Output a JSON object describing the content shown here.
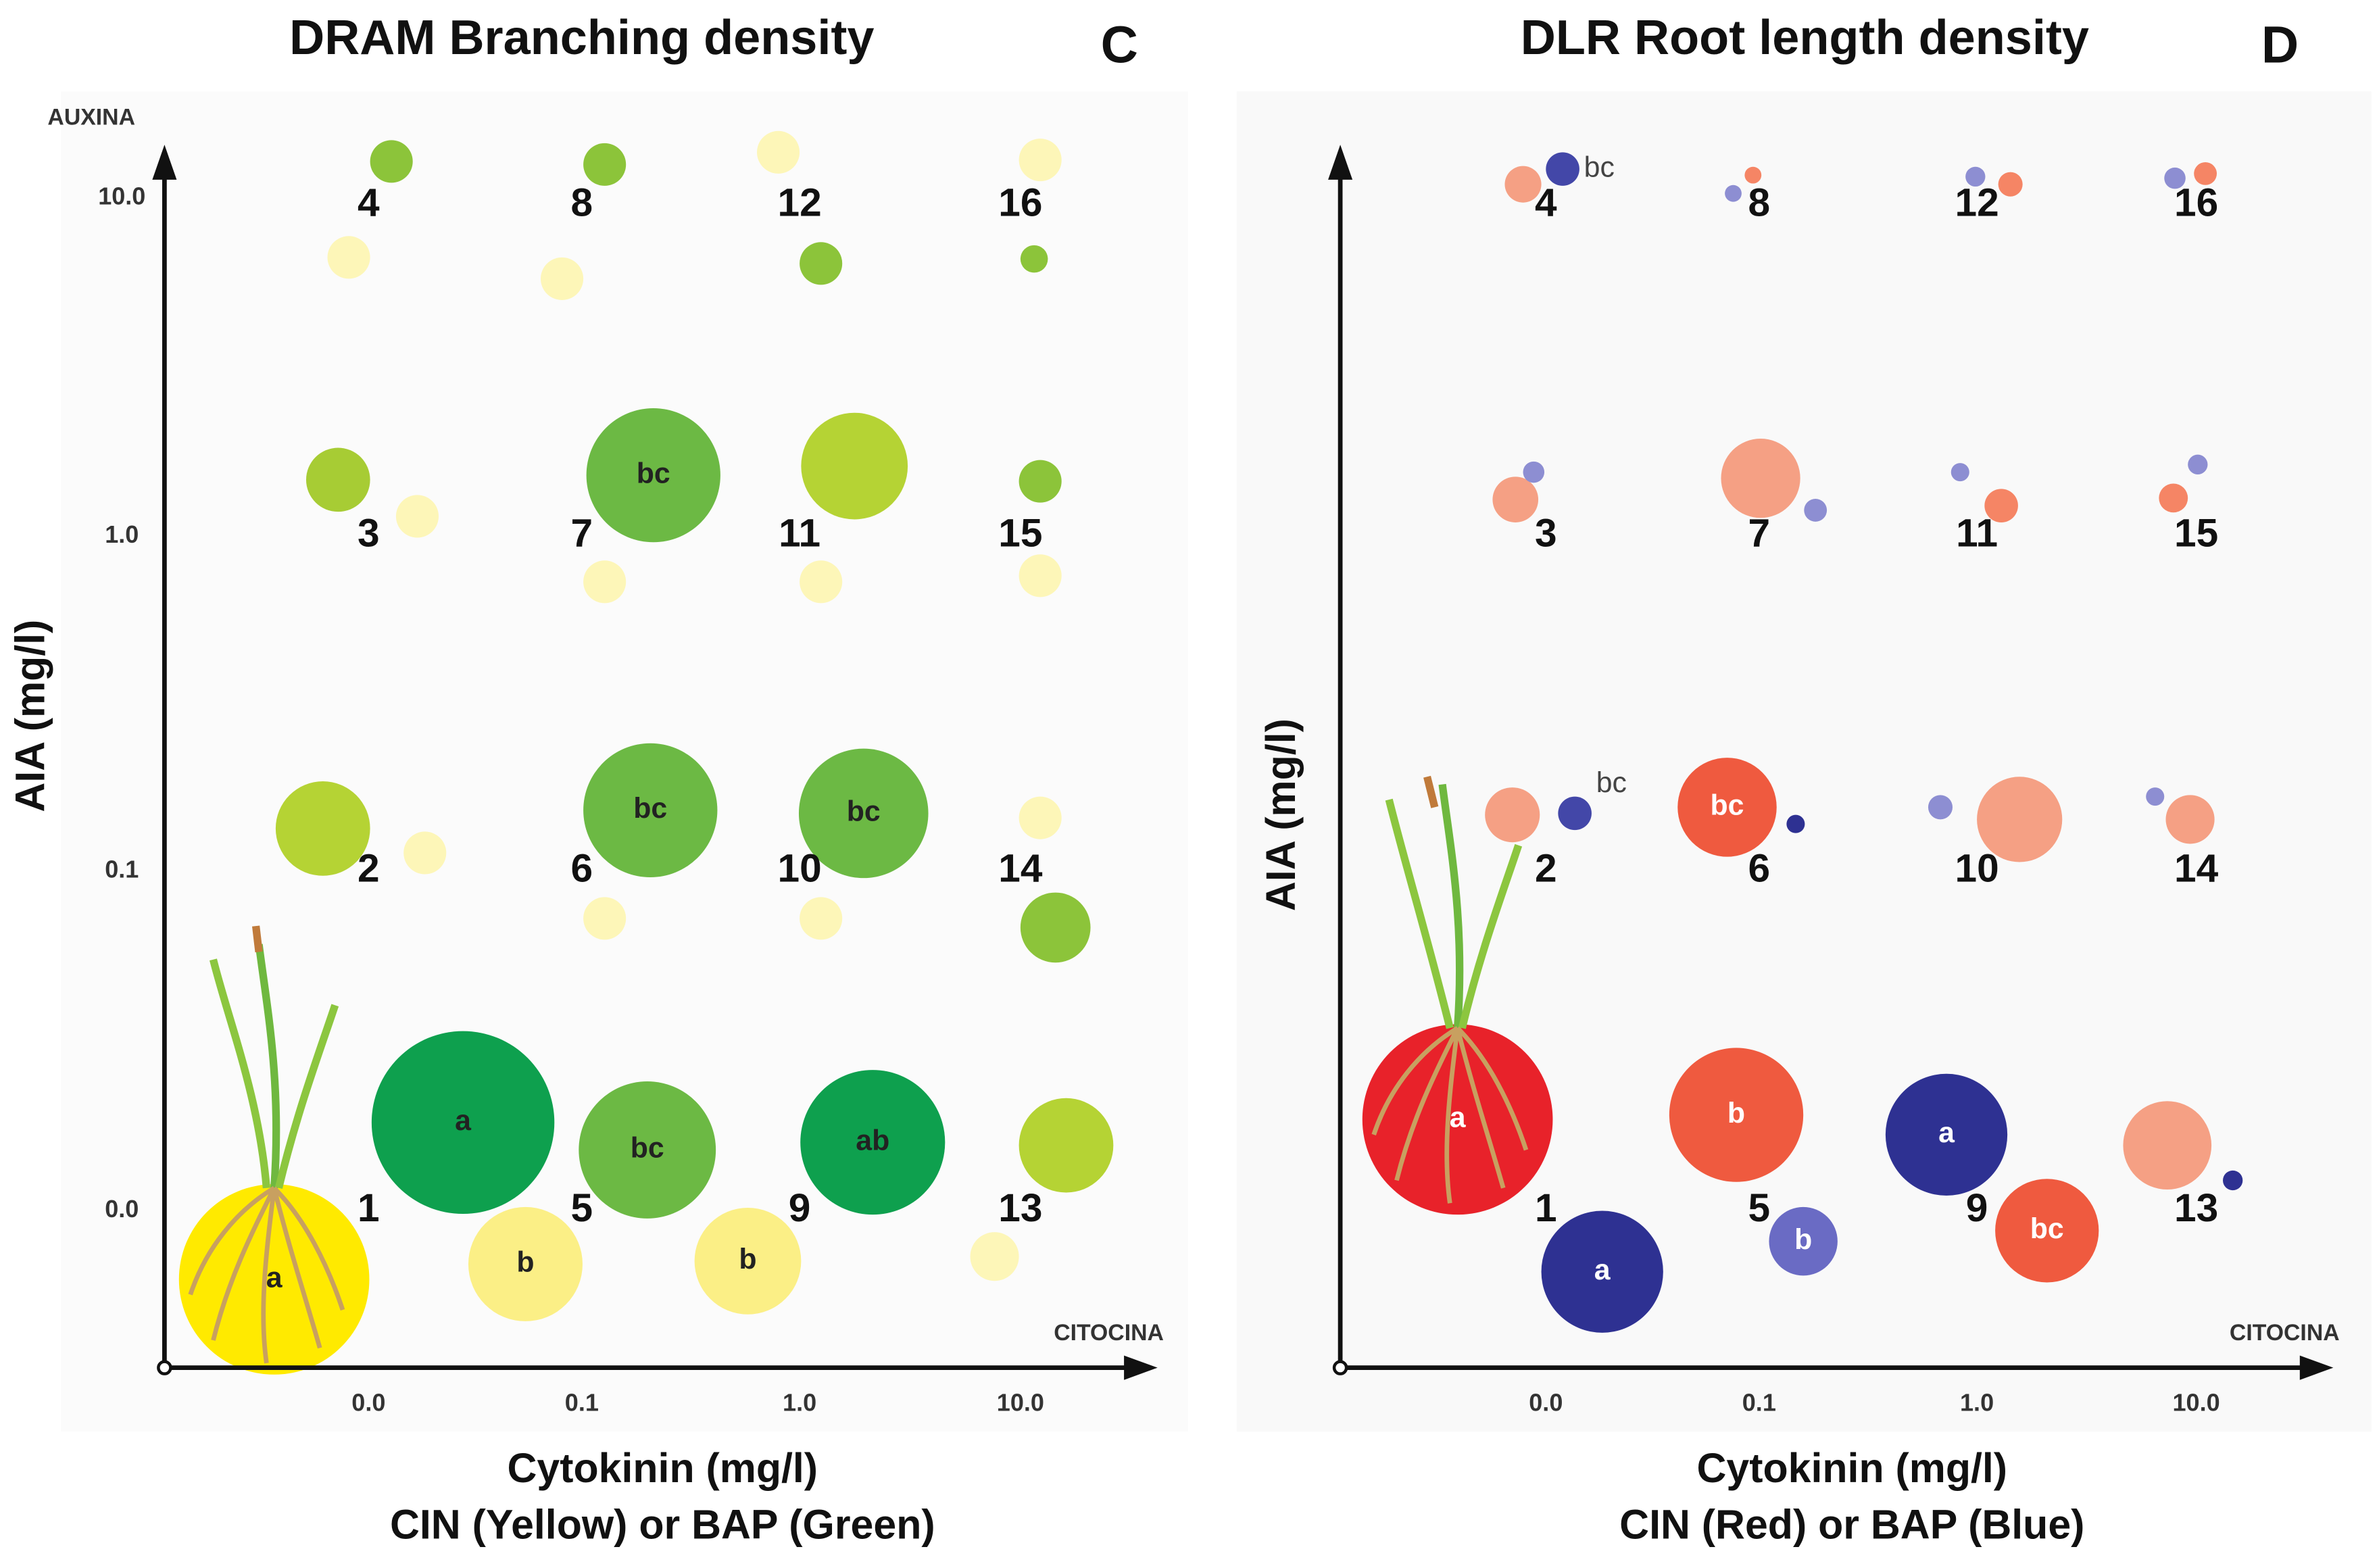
{
  "chart_data": [
    {
      "type": "bubble",
      "title": "DRAM Branching density",
      "panel_label": "C",
      "y_axis_tag": "AUXINA",
      "x_axis_tag": "CITOCINA",
      "y_label": "AIA (mg/l)",
      "x_label": "Cytokinin (mg/l)",
      "x_label2": "CIN (Yellow) or BAP (Green)",
      "categories": [
        "0.0",
        "0.1",
        "1.0",
        "10.0"
      ],
      "y_categories": [
        "0.0",
        "0.1",
        "1.0",
        "10.0"
      ],
      "treatments": [
        1,
        2,
        3,
        4,
        5,
        6,
        7,
        8,
        9,
        10,
        11,
        12,
        13,
        14,
        15,
        16
      ],
      "series": [
        {
          "values": [
            125,
            28,
            28,
            28,
            75,
            28,
            28,
            28,
            70,
            28,
            28,
            28,
            32,
            28,
            28,
            28
          ],
          "colors": [
            "#ffea00",
            "#fdf6b8",
            "#fdf6b8",
            "#fdf6b8",
            "#fbef86",
            "#fdf6b8",
            "#fdf6b8",
            "#fdf6b8",
            "#fbef86",
            "#fdf6b8",
            "#fdf6b8",
            "#fdf6b8",
            "#fdf6b8",
            "#fdf6b8",
            "#fdf6b8",
            "#fdf6b8"
          ],
          "letters": [
            "a",
            null,
            null,
            null,
            "b",
            null,
            null,
            null,
            "b",
            null,
            null,
            null,
            null,
            null,
            null,
            null
          ]
        },
        {
          "values": [
            120,
            62,
            42,
            28,
            90,
            88,
            88,
            28,
            95,
            85,
            70,
            28,
            62,
            46,
            28,
            18
          ],
          "colors": [
            "#0ea04e",
            "#b5d334",
            "#a7cc34",
            "#8cc43a",
            "#6cb944",
            "#6cb944",
            "#6cb944",
            "#8cc43a",
            "#0ea04e",
            "#6cb944",
            "#b5d334",
            "#8cc43a",
            "#b5d334",
            "#8cc43a",
            "#8cc43a",
            "#8cc43a"
          ],
          "letters": [
            "a",
            null,
            null,
            null,
            "bc",
            "bc",
            "bc",
            null,
            "ab",
            "bc",
            null,
            null,
            null,
            null,
            null,
            null
          ]
        }
      ]
    },
    {
      "type": "bubble",
      "title": "DLR Root length density",
      "panel_label": "D",
      "x_axis_tag": "CITOCINA",
      "y_label": "AIA (mg/l)",
      "x_label": "Cytokinin (mg/l)",
      "x_label2": "CIN (Red) or BAP (Blue)",
      "categories": [
        "0.0",
        "0.1",
        "1.0",
        "10.0"
      ],
      "treatments": [
        1,
        2,
        3,
        4,
        5,
        6,
        7,
        8,
        9,
        10,
        11,
        12,
        13,
        14,
        15,
        16
      ],
      "series": [
        {
          "values": [
            125,
            36,
            30,
            24,
            88,
            65,
            52,
            11,
            68,
            56,
            22,
            16,
            58,
            32,
            19,
            15
          ],
          "colors": [
            "#e8222a",
            "#f5a084",
            "#f5a084",
            "#f5a084",
            "#ef5a3f",
            "#ef5a3f",
            "#f5a084",
            "#f58565",
            "#ef5a3f",
            "#f5a084",
            "#f58565",
            "#f58565",
            "#f5a084",
            "#f5a084",
            "#f58565",
            "#f58565"
          ],
          "letters": [
            "a",
            null,
            null,
            null,
            "b",
            "bc",
            null,
            null,
            "bc",
            null,
            null,
            null,
            null,
            null,
            null,
            null
          ]
        },
        {
          "values": [
            80,
            22,
            14,
            22,
            45,
            12,
            15,
            11,
            80,
            16,
            12,
            13,
            13,
            12,
            13,
            14
          ],
          "colors": [
            "#2e3192",
            "#4347a8",
            "#8d8ed2",
            "#4347a8",
            "#6a6bc4",
            "#2e3192",
            "#8d8ed2",
            "#8d8ed2",
            "#2e3192",
            "#8d8ed2",
            "#8d8ed2",
            "#8d8ed2",
            "#2e3192",
            "#8d8ed2",
            "#8d8ed2",
            "#8d8ed2"
          ],
          "letters": [
            "a",
            "bc",
            null,
            "bc",
            "b",
            null,
            null,
            null,
            "a",
            null,
            null,
            null,
            null,
            null,
            null,
            null
          ]
        }
      ]
    }
  ]
}
